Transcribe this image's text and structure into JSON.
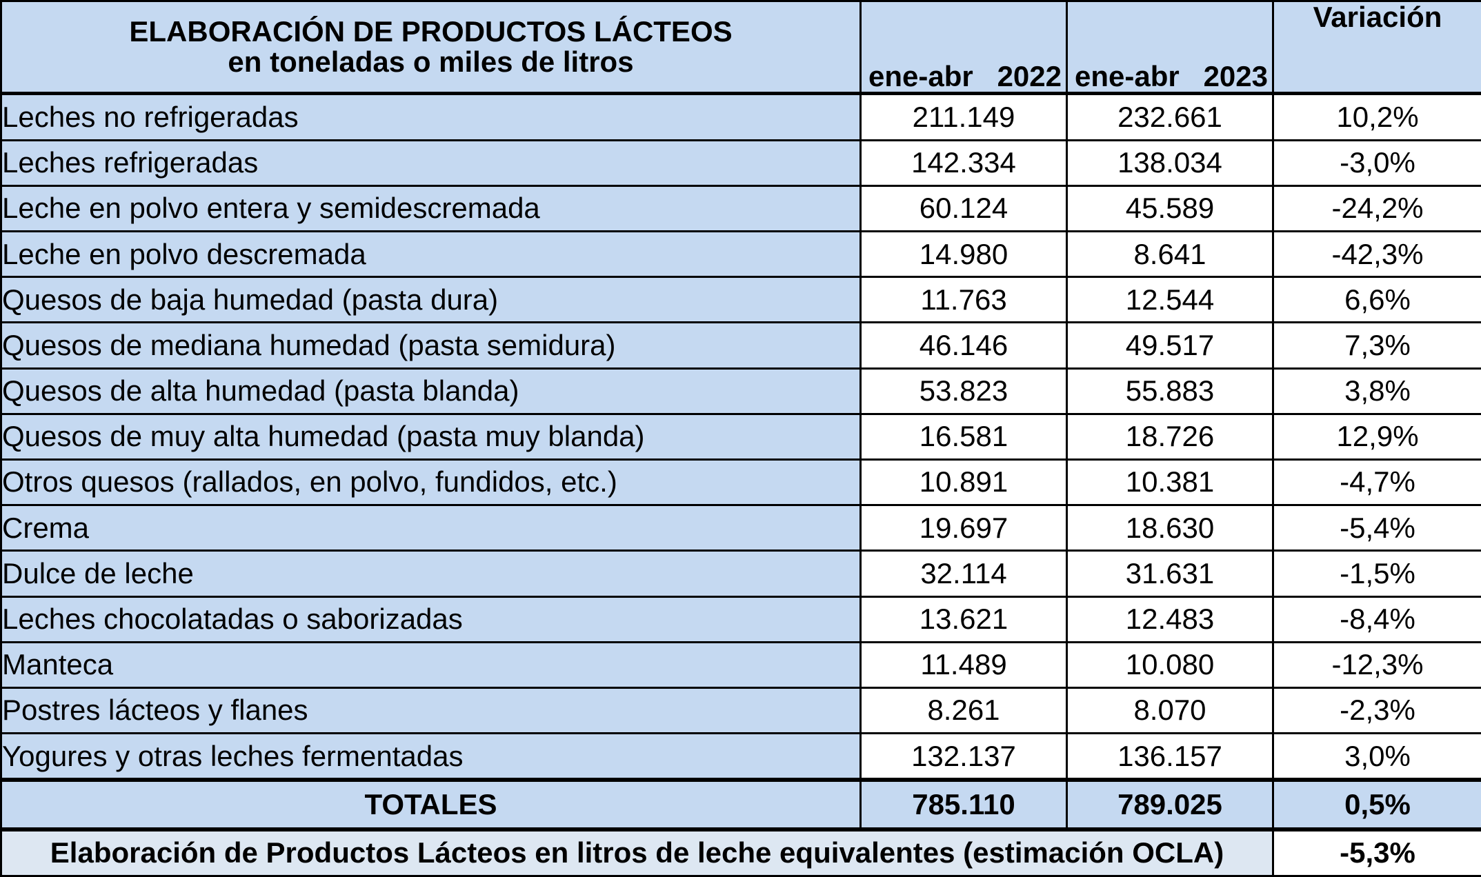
{
  "header": {
    "title_line1": "ELABORACIÓN DE PRODUCTOS LÁCTEOS",
    "title_line2": "en toneladas o miles de litros",
    "col_a_period": "ene-abr",
    "col_a_year": "2022",
    "col_b_period": "ene-abr",
    "col_b_year": "2023",
    "col_var": "Variación"
  },
  "rows": [
    {
      "product": "Leches no refrigeradas",
      "v2022": "211.149",
      "v2023": "232.661",
      "var": "10,2%"
    },
    {
      "product": "Leches refrigeradas",
      "v2022": "142.334",
      "v2023": "138.034",
      "var": "-3,0%"
    },
    {
      "product": "Leche en polvo entera y semidescremada",
      "v2022": "60.124",
      "v2023": "45.589",
      "var": "-24,2%"
    },
    {
      "product": "Leche en polvo descremada",
      "v2022": "14.980",
      "v2023": "8.641",
      "var": "-42,3%"
    },
    {
      "product": "Quesos de baja humedad (pasta dura)",
      "v2022": "11.763",
      "v2023": "12.544",
      "var": "6,6%"
    },
    {
      "product": "Quesos de mediana humedad (pasta semidura)",
      "v2022": "46.146",
      "v2023": "49.517",
      "var": "7,3%"
    },
    {
      "product": "Quesos de alta humedad (pasta blanda)",
      "v2022": "53.823",
      "v2023": "55.883",
      "var": "3,8%"
    },
    {
      "product": "Quesos de muy alta humedad (pasta muy blanda)",
      "v2022": "16.581",
      "v2023": "18.726",
      "var": "12,9%"
    },
    {
      "product": "Otros quesos (rallados, en polvo, fundidos, etc.)",
      "v2022": "10.891",
      "v2023": "10.381",
      "var": "-4,7%"
    },
    {
      "product": "Crema",
      "v2022": "19.697",
      "v2023": "18.630",
      "var": "-5,4%"
    },
    {
      "product": "Dulce de leche",
      "v2022": "32.114",
      "v2023": "31.631",
      "var": "-1,5%"
    },
    {
      "product": "Leches chocolatadas o saborizadas",
      "v2022": "13.621",
      "v2023": "12.483",
      "var": "-8,4%"
    },
    {
      "product": "Manteca",
      "v2022": "11.489",
      "v2023": "10.080",
      "var": "-12,3%"
    },
    {
      "product": "Postres lácteos y flanes",
      "v2022": "8.261",
      "v2023": "8.070",
      "var": "-2,3%"
    },
    {
      "product": "Yogures y otras leches fermentadas",
      "v2022": "132.137",
      "v2023": "136.157",
      "var": "3,0%"
    }
  ],
  "totals": {
    "label": "TOTALES",
    "v2022": "785.110",
    "v2023": "789.025",
    "var": "0,5%"
  },
  "footer": {
    "label": "Elaboración de Productos Lácteos en litros de leche equivalentes (estimación OCLA)",
    "var": "-5,3%"
  }
}
